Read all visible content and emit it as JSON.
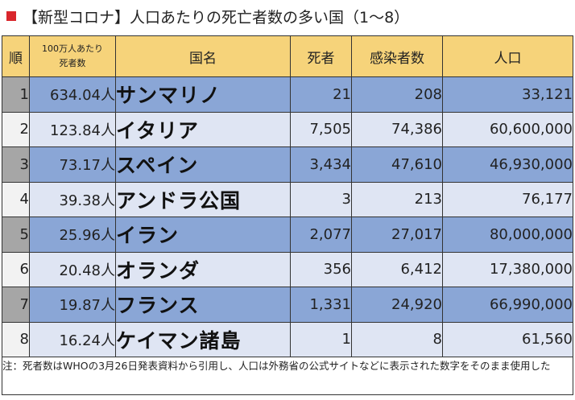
{
  "title": "【新型コロナ】人口あたりの死亡者数の多い国（1〜8）",
  "accent_color": "#d9262c",
  "header_color": "#f6d37a",
  "headers": {
    "rank": "順",
    "rate_line1": "100万人あたり",
    "rate_line2": "死者数",
    "country": "国名",
    "deaths": "死者",
    "infected": "感染者数",
    "population": "人口"
  },
  "rows": [
    {
      "rank": "1",
      "rate": "634.04人",
      "country": "サンマリノ",
      "deaths": "21",
      "infected": "208",
      "population": "33,121"
    },
    {
      "rank": "2",
      "rate": "123.84人",
      "country": "イタリア",
      "deaths": "7,505",
      "infected": "74,386",
      "population": "60,600,000"
    },
    {
      "rank": "3",
      "rate": "73.17人",
      "country": "スペイン",
      "deaths": "3,434",
      "infected": "47,610",
      "population": "46,930,000"
    },
    {
      "rank": "4",
      "rate": "39.38人",
      "country": "アンドラ公国",
      "deaths": "3",
      "infected": "213",
      "population": "76,177"
    },
    {
      "rank": "5",
      "rate": "25.96人",
      "country": "イラン",
      "deaths": "2,077",
      "infected": "27,017",
      "population": "80,000,000"
    },
    {
      "rank": "6",
      "rate": "20.48人",
      "country": "オランダ",
      "deaths": "356",
      "infected": "6,412",
      "population": "17,380,000"
    },
    {
      "rank": "7",
      "rate": "19.87人",
      "country": "フランス",
      "deaths": "1,331",
      "infected": "24,920",
      "population": "66,990,000"
    },
    {
      "rank": "8",
      "rate": "16.24人",
      "country": "ケイマン諸島",
      "deaths": "1",
      "infected": "8",
      "population": "61,560"
    }
  ],
  "note": "注：死者数はWHOの3月26日発表資料から引用し、人口は外務省の公式サイトなどに表示された数字をそのまま使用した"
}
